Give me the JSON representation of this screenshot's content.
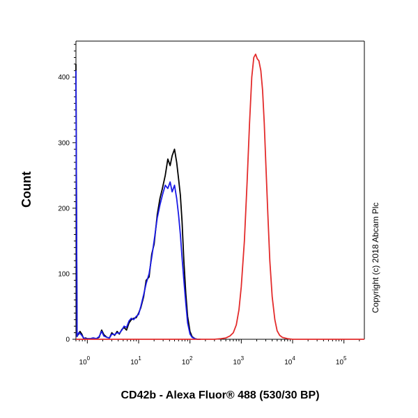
{
  "chart_data": {
    "type": "line",
    "title": "",
    "xlabel": "CD42b - Alexa Fluor® 488 (530/30 BP)",
    "ylabel": "Count",
    "x_scale": "log",
    "xlim": [
      0.6,
      250000
    ],
    "ylim": [
      0,
      455
    ],
    "x_ticks": [
      {
        "value": 1,
        "label_base": "10",
        "label_exp": "0"
      },
      {
        "value": 10,
        "label_base": "10",
        "label_exp": "1"
      },
      {
        "value": 100,
        "label_base": "10",
        "label_exp": "2"
      },
      {
        "value": 1000,
        "label_base": "10",
        "label_exp": "3"
      },
      {
        "value": 10000,
        "label_base": "10",
        "label_exp": "4"
      },
      {
        "value": 100000,
        "label_base": "10",
        "label_exp": "5"
      }
    ],
    "y_ticks": [
      {
        "value": 0,
        "label": "0"
      },
      {
        "value": 100,
        "label": "100"
      },
      {
        "value": 200,
        "label": "200"
      },
      {
        "value": 300,
        "label": "300"
      },
      {
        "value": 400,
        "label": "400"
      }
    ],
    "grid": false,
    "legend": "none",
    "annotation": "Copyright (c) 2018 Abcam Plc",
    "series": [
      {
        "color": "#000000",
        "x": [
          0.6,
          0.63,
          0.68,
          0.72,
          0.78,
          0.85,
          0.92,
          1.0,
          1.15,
          1.3,
          1.5,
          1.7,
          1.9,
          2.1,
          2.4,
          2.7,
          3.0,
          3.4,
          3.8,
          4.2,
          4.7,
          5.2,
          5.8,
          6.5,
          7.2,
          8.0,
          9.0,
          10.0,
          11.0,
          12.5,
          14.0,
          16.0,
          18.0,
          20.0,
          23.0,
          26.0,
          29.0,
          33.0,
          37.0,
          41.0,
          45.0,
          50.0,
          55.0,
          60.0,
          65.0,
          70.0,
          76.0,
          83.0,
          90.0,
          100.0,
          110.0,
          125.0,
          140.0,
          160.0
        ],
        "values": [
          420,
          5,
          8,
          12,
          8,
          1,
          2,
          1,
          1,
          2,
          1,
          3,
          14,
          7,
          3,
          2,
          10,
          6,
          12,
          8,
          15,
          18,
          14,
          25,
          30,
          32,
          33,
          40,
          48,
          65,
          90,
          95,
          130,
          145,
          190,
          215,
          230,
          250,
          275,
          265,
          280,
          290,
          270,
          245,
          220,
          180,
          120,
          70,
          35,
          12,
          4,
          1,
          0,
          0
        ]
      },
      {
        "color": "#1a1ae6",
        "x": [
          0.6,
          0.63,
          0.68,
          0.72,
          0.78,
          0.85,
          0.92,
          1.0,
          1.15,
          1.3,
          1.5,
          1.7,
          1.9,
          2.1,
          2.4,
          2.7,
          3.0,
          3.4,
          3.8,
          4.2,
          4.7,
          5.2,
          5.8,
          6.5,
          7.2,
          8.0,
          9.0,
          10.0,
          11.0,
          12.5,
          14.0,
          16.0,
          18.0,
          20.0,
          23.0,
          26.0,
          29.0,
          33.0,
          37.0,
          41.0,
          45.0,
          50.0,
          55.0,
          60.0,
          65.0,
          70.0,
          76.0,
          83.0,
          90.0,
          100.0,
          110.0,
          125.0,
          140.0,
          160.0
        ],
        "values": [
          410,
          4,
          10,
          9,
          6,
          2,
          1,
          1,
          1,
          2,
          1,
          4,
          12,
          5,
          3,
          2,
          8,
          7,
          10,
          9,
          14,
          20,
          18,
          28,
          32,
          30,
          35,
          38,
          50,
          68,
          85,
          100,
          125,
          150,
          185,
          205,
          220,
          235,
          230,
          240,
          225,
          235,
          215,
          190,
          160,
          125,
          90,
          55,
          25,
          8,
          3,
          1,
          0,
          0
        ]
      },
      {
        "color": "#e32b2b",
        "x": [
          0.6,
          100,
          200,
          300,
          400,
          500,
          600,
          700,
          800,
          900,
          1000,
          1150,
          1300,
          1450,
          1600,
          1750,
          1900,
          2050,
          2200,
          2400,
          2600,
          2800,
          3000,
          3300,
          3600,
          4000,
          4500,
          5000,
          5600,
          6300,
          7000,
          8000,
          10000,
          30000,
          250000
        ],
        "values": [
          0,
          0,
          0,
          0,
          1,
          2,
          5,
          10,
          22,
          45,
          80,
          150,
          240,
          330,
          400,
          430,
          435,
          428,
          425,
          410,
          380,
          330,
          270,
          190,
          120,
          65,
          30,
          13,
          6,
          3,
          2,
          1,
          0,
          0,
          0
        ]
      }
    ]
  }
}
